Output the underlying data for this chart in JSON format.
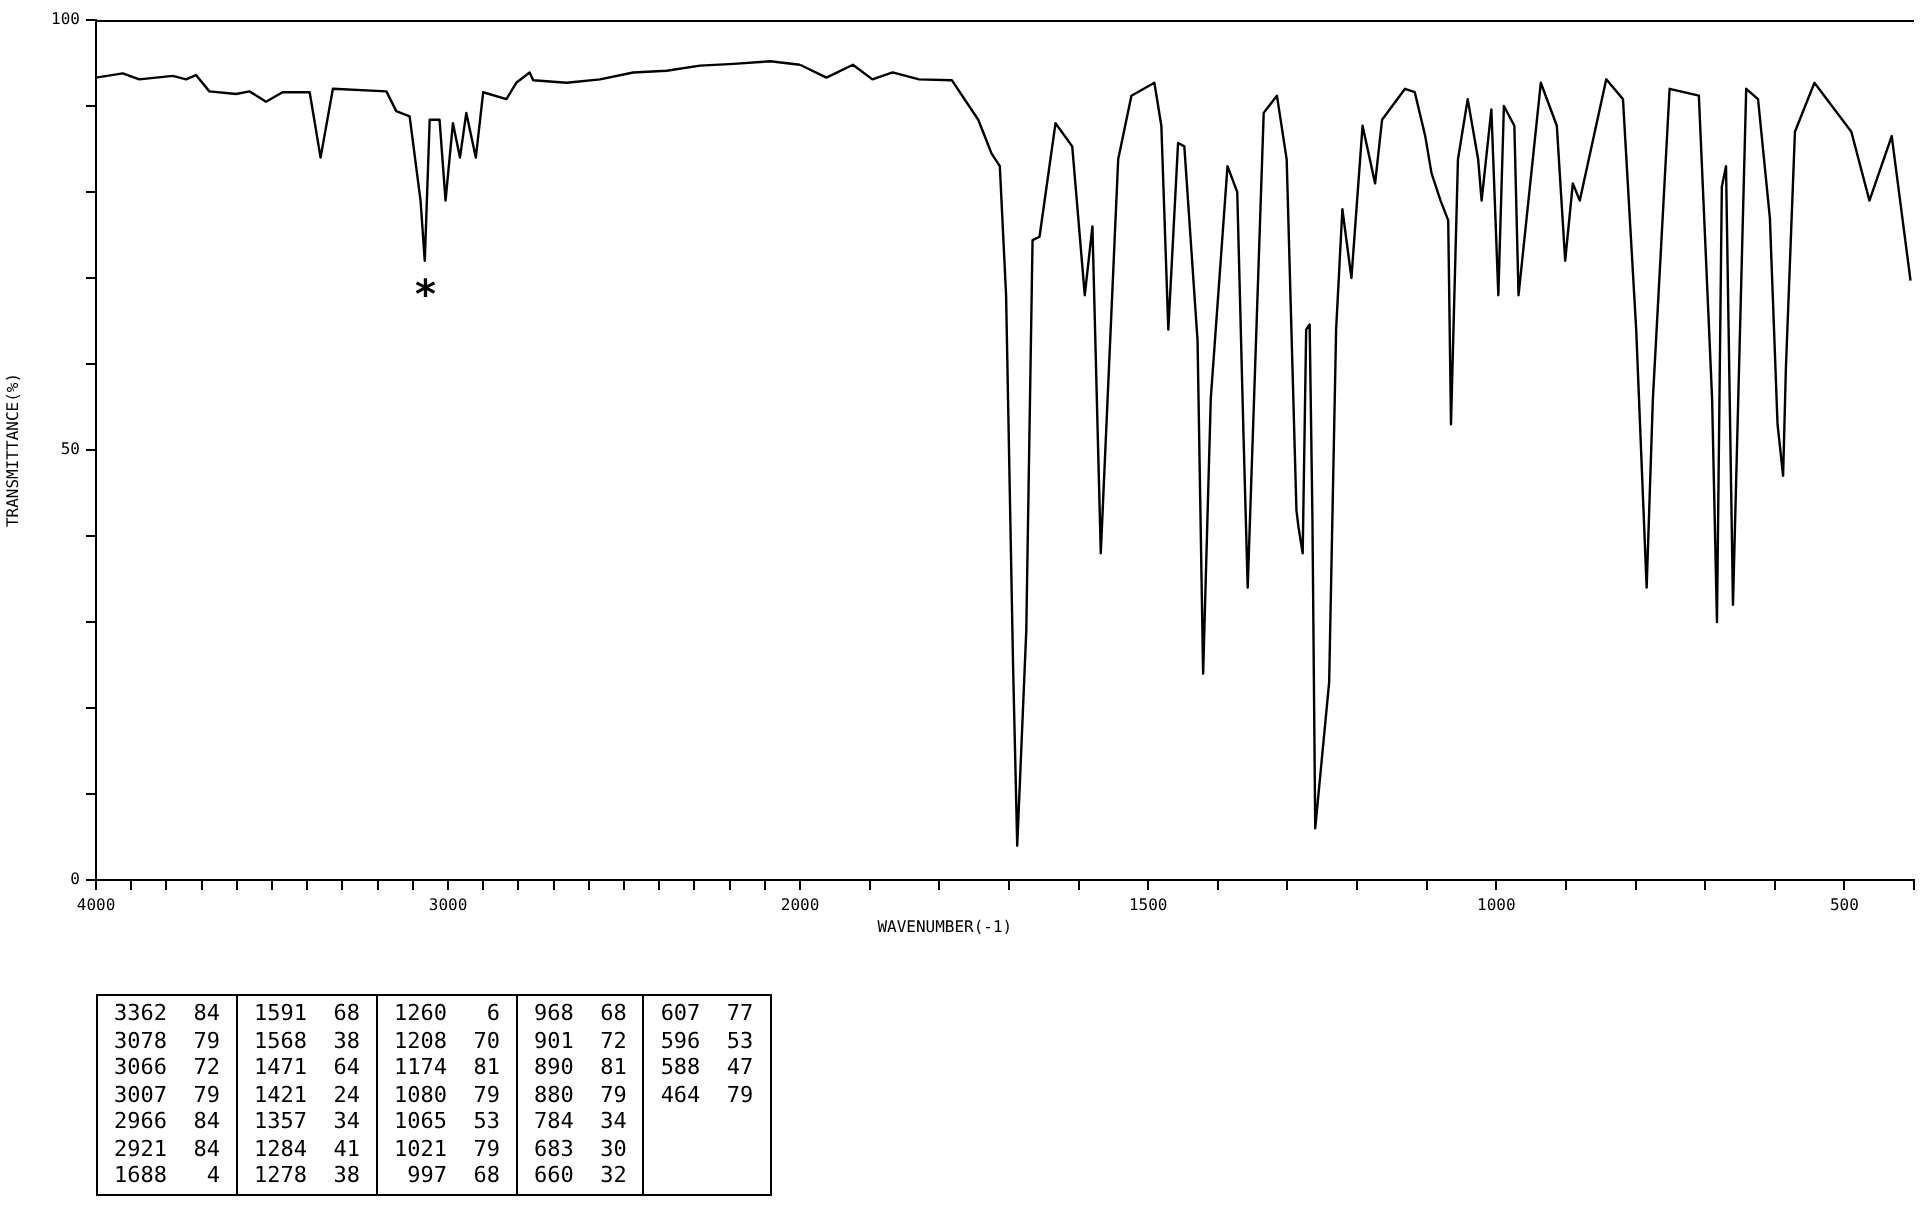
{
  "chart_data": [
    {
      "type": "line",
      "ylabel": "TRANSMITTANCE(%)",
      "xlim": [
        4000,
        2000
      ],
      "ylim": [
        0,
        100
      ],
      "xticks": [
        4000,
        {
          "value": 3900,
          "label": null
        },
        {
          "value": 3800,
          "label": null
        },
        {
          "value": 3700,
          "label": null
        },
        {
          "value": 3600,
          "label": null
        },
        {
          "value": 3500,
          "label": null
        },
        {
          "value": 3400,
          "label": null
        },
        {
          "value": 3300,
          "label": null
        },
        {
          "value": 3200,
          "label": null
        },
        {
          "value": 3100,
          "label": null
        },
        3000,
        {
          "value": 2900,
          "label": null
        },
        {
          "value": 2800,
          "label": null
        },
        {
          "value": 2700,
          "label": null
        },
        {
          "value": 2600,
          "label": null
        },
        {
          "value": 2500,
          "label": null
        },
        {
          "value": 2400,
          "label": null
        },
        {
          "value": 2300,
          "label": null
        },
        {
          "value": 2200,
          "label": null
        },
        {
          "value": 2100,
          "label": null
        }
      ],
      "yticks": [
        0,
        {
          "value": 10,
          "label": null
        },
        {
          "value": 20,
          "label": null
        },
        {
          "value": 30,
          "label": null
        },
        {
          "value": 40,
          "label": null
        },
        50,
        {
          "value": 60,
          "label": null
        },
        {
          "value": 70,
          "label": null
        },
        {
          "value": 80,
          "label": null
        },
        {
          "value": 90,
          "label": null
        },
        100
      ],
      "grid": false,
      "legend": false,
      "marker": "none",
      "line_style": "solid",
      "annotations": [
        "*"
      ],
      "series": [
        {
          "color": "#000000",
          "x": [
            4000,
            3924,
            3877,
            3782,
            3744,
            3716,
            3678,
            3602,
            3564,
            3517,
            3470,
            3393,
            3362,
            3327,
            3175,
            3147,
            3109,
            3078,
            3066,
            3052,
            3024,
            3007,
            2986,
            2966,
            2948,
            2921,
            2900,
            2834,
            2806,
            2768,
            2758,
            2663,
            2568,
            2474,
            2379,
            2284,
            2189,
            2085,
            2000
          ],
          "values": [
            93.3,
            93.8,
            93.1,
            93.5,
            93.1,
            93.6,
            91.7,
            91.4,
            91.7,
            90.5,
            91.6,
            91.6,
            84,
            92,
            91.7,
            89.4,
            88.8,
            79,
            72,
            88.4,
            88.4,
            79,
            88,
            84,
            89.2,
            84,
            91.6,
            90.8,
            92.7,
            93.9,
            93,
            92.7,
            93.1,
            93.9,
            94.1,
            94.7,
            94.9,
            95.2,
            94.8
          ]
        }
      ]
    },
    {
      "type": "line",
      "xlabel": "WAVENUMBER(-1)",
      "xlim": [
        2000,
        400
      ],
      "ylim": [
        0,
        100
      ],
      "tick_labels": "x",
      "xticks": [
        2000,
        {
          "value": 1900,
          "label": null
        },
        {
          "value": 1800,
          "label": null
        },
        {
          "value": 1700,
          "label": null
        },
        {
          "value": 1600,
          "label": null
        },
        1500,
        {
          "value": 1400,
          "label": null
        },
        {
          "value": 1300,
          "label": null
        },
        {
          "value": 1200,
          "label": null
        },
        {
          "value": 1100,
          "label": null
        },
        1000,
        {
          "value": 900,
          "label": null
        },
        {
          "value": 800,
          "label": null
        },
        {
          "value": 700,
          "label": null
        },
        {
          "value": 600,
          "label": null
        },
        500,
        {
          "value": 400,
          "label": null
        }
      ],
      "grid": false,
      "legend": false,
      "marker": "none",
      "line_style": "solid",
      "series": [
        {
          "color": "#000000",
          "x": [
            2000,
            1962,
            1924,
            1896,
            1867,
            1829,
            1782,
            1744,
            1725,
            1713,
            1704,
            1694,
            1688,
            1675,
            1666,
            1656,
            1633,
            1609,
            1591,
            1580,
            1568,
            1543,
            1524,
            1491,
            1481,
            1471,
            1457,
            1448,
            1429,
            1421,
            1410,
            1386,
            1372,
            1363,
            1357,
            1334,
            1315,
            1301,
            1287,
            1284,
            1278,
            1273,
            1268,
            1264,
            1260,
            1240,
            1230,
            1221,
            1208,
            1192,
            1174,
            1164,
            1131,
            1117,
            1102,
            1093,
            1080,
            1069,
            1065,
            1055,
            1041,
            1026,
            1021,
            1007,
            997,
            989,
            974,
            968,
            936,
            913,
            901,
            890,
            880,
            842,
            818,
            799,
            784,
            775,
            751,
            709,
            690,
            683,
            676,
            670,
            660,
            641,
            624,
            607,
            596,
            588,
            584,
            571,
            543,
            490,
            464,
            432,
            405
          ],
          "values": [
            94.8,
            93.3,
            94.8,
            93.1,
            93.9,
            93.1,
            93,
            88.4,
            84.5,
            83,
            68,
            25,
            4,
            29,
            74.4,
            74.8,
            88,
            85.3,
            68,
            76,
            38,
            83.8,
            91.2,
            92.7,
            87.7,
            64,
            85.7,
            85.3,
            62.7,
            24,
            56,
            83,
            80,
            51.7,
            34,
            89.2,
            91.2,
            83.8,
            43,
            41,
            38,
            64,
            64.6,
            42,
            6,
            23,
            64,
            78,
            70,
            87.7,
            81,
            88.4,
            92,
            91.6,
            86.5,
            82.2,
            79,
            76.7,
            53,
            83.8,
            90.8,
            83.8,
            79,
            89.6,
            68,
            90,
            87.7,
            68,
            92.7,
            87.7,
            72,
            81,
            79,
            93.1,
            90.8,
            64,
            34,
            56,
            92,
            91.2,
            56,
            30,
            80.6,
            83,
            32,
            92,
            90.8,
            77,
            53,
            47,
            59.5,
            87,
            92.7,
            87,
            79,
            86.5,
            69.7
          ]
        }
      ]
    },
    {
      "type": "other",
      "annotations": [
        "3362  84",
        "3078  79",
        "3066  72",
        "3007  79",
        "2966  84",
        "2921  84",
        "1688   4",
        "1591  68",
        "1568  38",
        "1471  64",
        "1421  24",
        "1357  34",
        "1284  41",
        "1278  38",
        "1260   6",
        "1208  70",
        "1174  81",
        "1080  79",
        "1065  53",
        "1021  79",
        "997  68",
        "968  68",
        "901  72",
        "890  81",
        "880  79",
        "784  34",
        "683  30",
        "660  32",
        "607  77",
        "596  53",
        "588  47",
        "464  79"
      ]
    }
  ]
}
